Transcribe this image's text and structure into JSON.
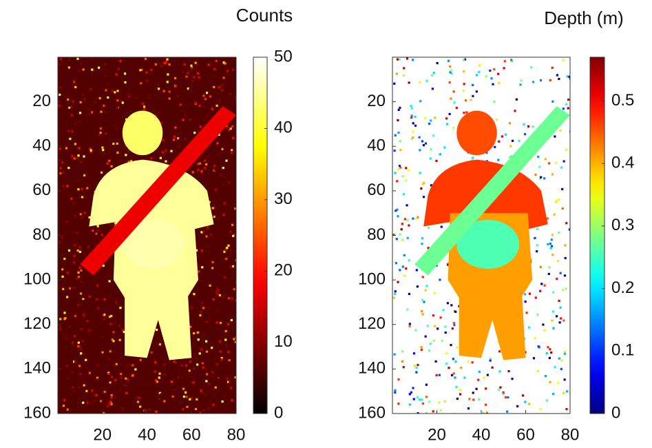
{
  "chart_data": [
    {
      "type": "heatmap",
      "colorbar_label": "Counts",
      "colormap": "hot",
      "xlim": [
        0,
        80
      ],
      "xticks": [
        20,
        40,
        60,
        80
      ],
      "ylim": [
        0,
        160
      ],
      "y_reversed": true,
      "yticks": [
        20,
        40,
        60,
        80,
        100,
        120,
        140,
        160
      ],
      "clim": [
        0,
        50
      ],
      "cticks": [
        0,
        10,
        20,
        30,
        40,
        50
      ]
    },
    {
      "type": "heatmap",
      "colorbar_label": "Depth (m)",
      "colormap": "jet",
      "xlim": [
        0,
        80
      ],
      "xticks": [
        20,
        40,
        60,
        80
      ],
      "ylim": [
        0,
        160
      ],
      "y_reversed": true,
      "yticks": [
        20,
        40,
        60,
        80,
        100,
        120,
        140,
        160
      ],
      "clim": [
        0,
        0.57
      ],
      "cticks": [
        0,
        0.1,
        0.2,
        0.3,
        0.4,
        0.5
      ]
    }
  ]
}
